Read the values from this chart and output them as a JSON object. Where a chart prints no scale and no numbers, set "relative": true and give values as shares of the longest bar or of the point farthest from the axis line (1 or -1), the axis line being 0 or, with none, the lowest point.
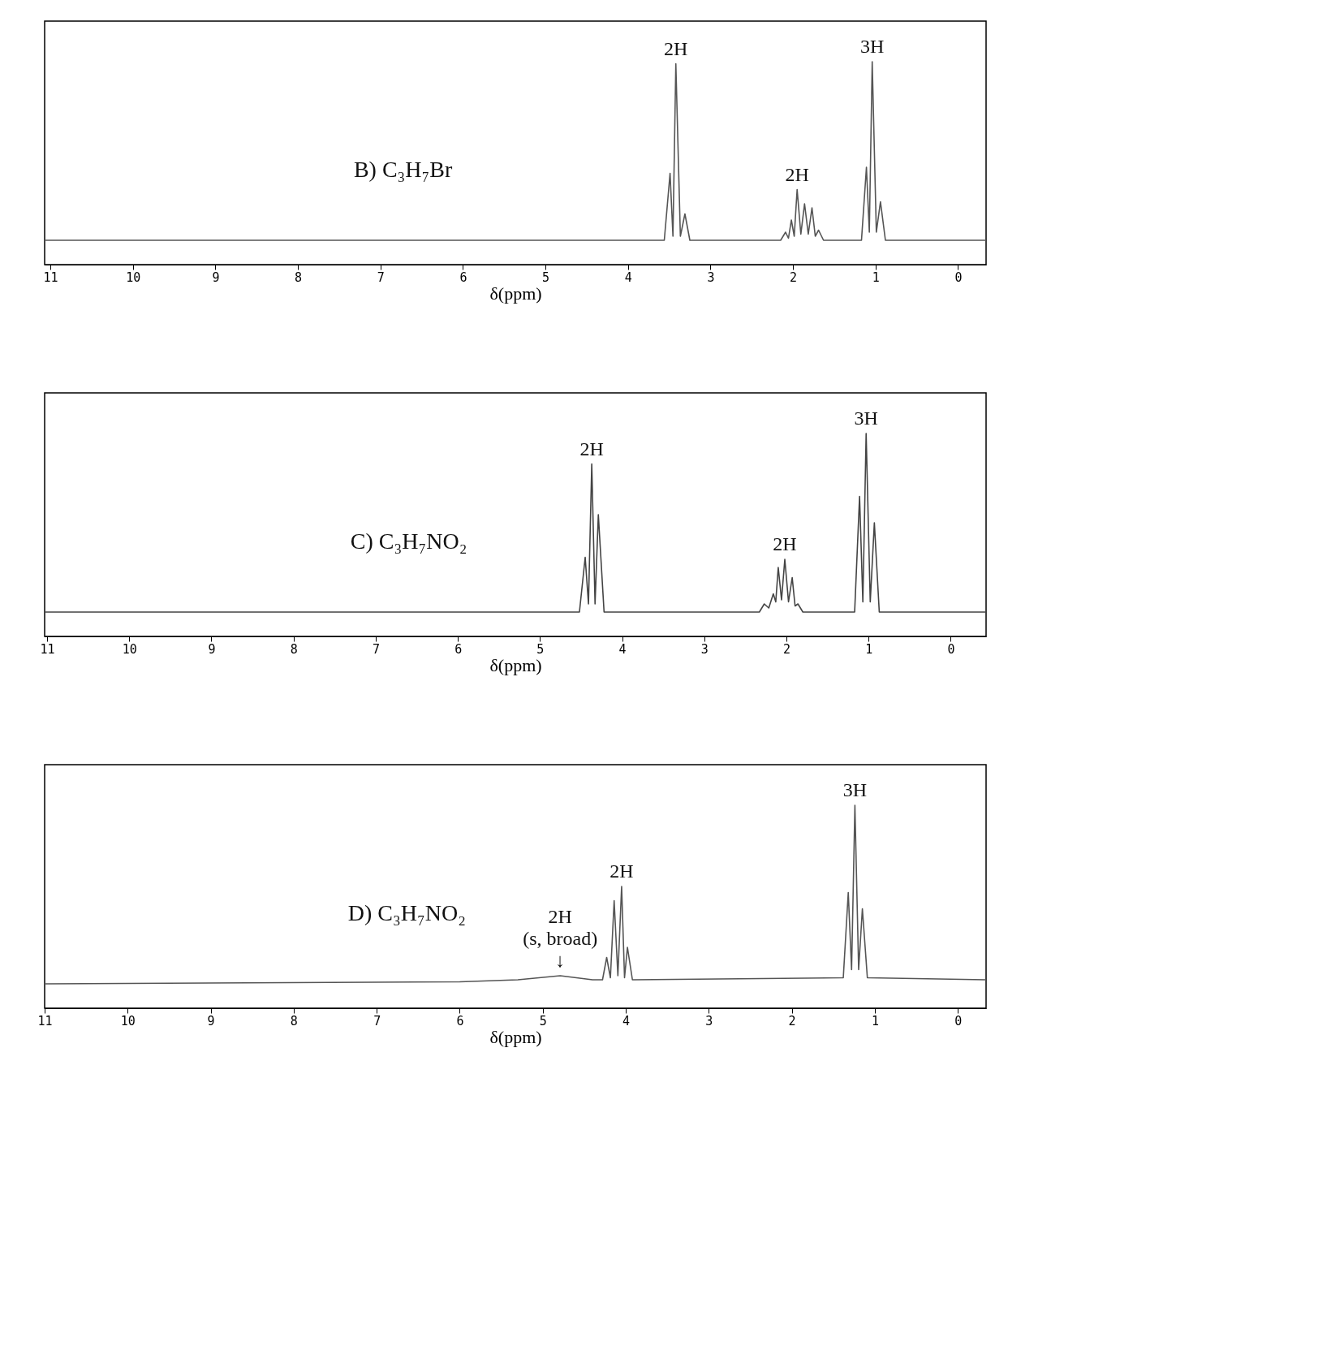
{
  "chart_data": [
    {
      "type": "line",
      "title": "B) C₃H₇Br",
      "xlabel": "δ(ppm)",
      "relative": true,
      "line_style": "solid",
      "xlim": [
        11.07,
        -0.34
      ],
      "xticks": [
        11,
        10,
        9,
        8,
        7,
        6,
        5,
        4,
        3,
        2,
        1,
        0
      ],
      "series": [
        {
          "color": "#555555",
          "x": [
            11.07,
            3.56,
            3.49,
            3.455,
            3.42,
            3.365,
            3.31,
            3.25,
            2.15,
            2.09,
            2.055,
            2.02,
            1.985,
            1.95,
            1.905,
            1.86,
            1.815,
            1.77,
            1.73,
            1.69,
            1.63,
            1.17,
            1.11,
            1.075,
            1.04,
            0.99,
            0.94,
            0.88,
            -0.34
          ],
          "values": [
            0.12,
            0.12,
            0.45,
            0.14,
            0.99,
            0.14,
            0.25,
            0.12,
            0.12,
            0.16,
            0.13,
            0.22,
            0.14,
            0.37,
            0.15,
            0.3,
            0.15,
            0.28,
            0.14,
            0.17,
            0.12,
            0.12,
            0.48,
            0.16,
            1.0,
            0.16,
            0.31,
            0.12,
            0.12
          ]
        }
      ],
      "annotations": [
        {
          "text": "2H",
          "x": 3.42,
          "y": 0.99
        },
        {
          "text": "3H",
          "x": 1.04,
          "y": 1.0
        },
        {
          "text": "2H",
          "x": 1.95,
          "y": 0.37
        }
      ]
    },
    {
      "type": "line",
      "title": "C)  C₃H₇NO₂",
      "xlabel": "δ(ppm)",
      "relative": true,
      "line_style": "solid",
      "xlim": [
        11.03,
        -0.43
      ],
      "xticks": [
        11,
        10,
        9,
        8,
        7,
        6,
        5,
        4,
        3,
        2,
        1,
        0
      ],
      "series": [
        {
          "color": "#444444",
          "x": [
            11.03,
            4.52,
            4.45,
            4.41,
            4.37,
            4.33,
            4.29,
            4.22,
            2.33,
            2.27,
            2.215,
            2.16,
            2.13,
            2.1,
            2.06,
            2.02,
            1.975,
            1.93,
            1.895,
            1.86,
            1.8,
            1.17,
            1.11,
            1.07,
            1.03,
            0.98,
            0.93,
            0.87,
            -0.43
          ],
          "values": [
            0.12,
            0.12,
            0.39,
            0.16,
            0.85,
            0.16,
            0.6,
            0.12,
            0.12,
            0.16,
            0.14,
            0.21,
            0.17,
            0.34,
            0.18,
            0.38,
            0.17,
            0.29,
            0.15,
            0.16,
            0.12,
            0.12,
            0.69,
            0.17,
            1.0,
            0.17,
            0.56,
            0.12,
            0.12
          ]
        }
      ],
      "annotations": [
        {
          "text": "2H",
          "x": 4.37,
          "y": 0.85
        },
        {
          "text": "3H",
          "x": 1.03,
          "y": 1.0
        },
        {
          "text": "2H",
          "x": 2.02,
          "y": 0.38
        }
      ]
    },
    {
      "type": "line",
      "title": "D)  C₃H₇NO₂",
      "xlabel": "δ(ppm)",
      "relative": true,
      "line_style": "solid",
      "xlim": [
        11,
        -0.34
      ],
      "xticks": [
        11,
        10,
        9,
        8,
        7,
        6,
        5,
        4,
        3,
        2,
        1,
        0
      ],
      "series": [
        {
          "color": "#555555",
          "x": [
            11,
            6,
            5.3,
            4.79,
            4.4,
            4.28,
            4.23,
            4.185,
            4.14,
            4.095,
            4.05,
            4.015,
            3.98,
            3.92,
            1.38,
            1.32,
            1.28,
            1.24,
            1.195,
            1.15,
            1.09,
            -0.34
          ],
          "values": [
            0.12,
            0.13,
            0.14,
            0.16,
            0.14,
            0.14,
            0.25,
            0.15,
            0.53,
            0.16,
            0.6,
            0.15,
            0.3,
            0.14,
            0.15,
            0.57,
            0.19,
            1.0,
            0.19,
            0.49,
            0.15,
            0.14
          ]
        }
      ],
      "annotations": [
        {
          "text": "3H",
          "x": 1.24,
          "y": 1.0
        },
        {
          "text": "2H",
          "x": 4.05,
          "y": 0.6
        },
        {
          "text": "2H",
          "x": 4.79,
          "y": 0.16
        },
        {
          "text": "(s, broad)",
          "x": 4.79,
          "y": 0.16
        },
        {
          "text": "↓",
          "x": 4.79,
          "y": 0.16
        }
      ]
    }
  ]
}
